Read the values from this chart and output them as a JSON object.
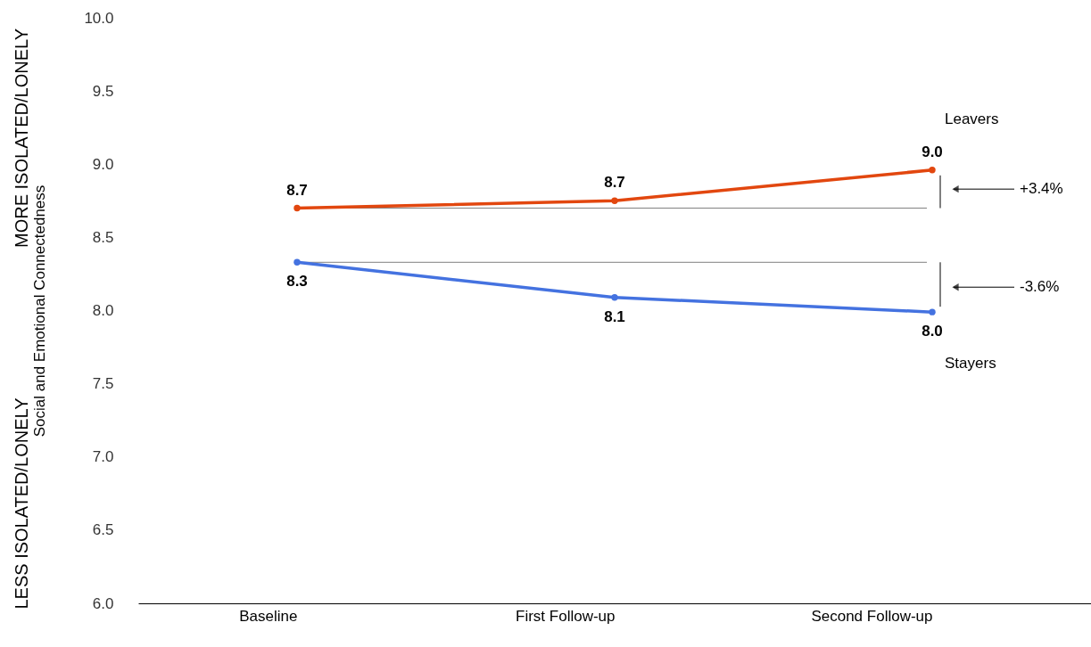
{
  "chart_data": {
    "type": "line",
    "ylabel": "Social and Emotional Connectedness",
    "categories": [
      "Baseline",
      "First Follow-up",
      "Second Follow-up"
    ],
    "series": [
      {
        "name": "Leavers",
        "color": "#e2470f",
        "values": [
          8.7,
          8.75,
          8.96
        ],
        "value_labels": [
          "8.7",
          "8.7",
          "9.0"
        ]
      },
      {
        "name": "Stayers",
        "color": "#4472e0",
        "values": [
          8.33,
          8.09,
          7.99
        ],
        "value_labels": [
          "8.3",
          "8.1",
          "8.0"
        ]
      }
    ],
    "ylim": [
      6,
      10
    ],
    "yticks": [
      {
        "value": 6,
        "label": "6.0"
      },
      6.5,
      {
        "value": 7,
        "label": "7.0"
      },
      7.5,
      {
        "value": 8,
        "label": "8.0"
      },
      8.5,
      {
        "value": 9,
        "label": "9.0"
      },
      9.5,
      {
        "value": 10,
        "label": "10.0"
      }
    ],
    "ref_lines": [
      {
        "axis": "y",
        "value": 8.7,
        "color": "#808080"
      },
      {
        "axis": "y",
        "value": 8.33,
        "color": "#808080"
      }
    ],
    "annotations": [
      "MORE ISOLATED/LONELY",
      "LESS ISOLATED/LONELY",
      "+3.4%",
      "-3.6%"
    ],
    "marker": "circle",
    "grid": false,
    "legend": false
  }
}
